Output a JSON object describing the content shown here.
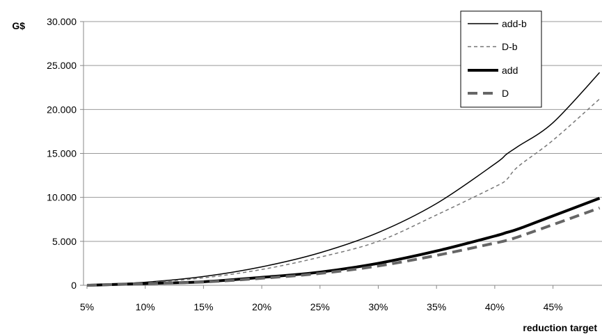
{
  "chart_data": {
    "type": "line",
    "title": "",
    "ylabel": "G$",
    "xlabel": "reduction target",
    "ylim": [
      0,
      30000
    ],
    "x_ticks": [
      "5%",
      "10%",
      "15%",
      "20%",
      "25%",
      "30%",
      "35%",
      "40%",
      "45%"
    ],
    "y_ticks": [
      "0",
      "5.000",
      "10.000",
      "15.000",
      "20.000",
      "25.000",
      "30.000"
    ],
    "grid": "horizontal",
    "legend_position": "top-right",
    "x": [
      5,
      10,
      15,
      20,
      25,
      30,
      35,
      40,
      41,
      42,
      45,
      49
    ],
    "series": [
      {
        "name": "add-b",
        "style": "thin-solid",
        "color": "#000000",
        "values": [
          0,
          350,
          1000,
          2100,
          3700,
          6000,
          9300,
          13800,
          14900,
          15800,
          18500,
          24200
        ]
      },
      {
        "name": "D-b",
        "style": "thin-dashed",
        "color": "#777777",
        "values": [
          0,
          300,
          850,
          1800,
          3200,
          5000,
          8000,
          11200,
          12000,
          13500,
          16500,
          21200
        ]
      },
      {
        "name": "add",
        "style": "thick-solid",
        "color": "#000000",
        "values": [
          0,
          200,
          400,
          900,
          1500,
          2500,
          3900,
          5600,
          6000,
          6400,
          7900,
          9900
        ]
      },
      {
        "name": "D",
        "style": "thick-dashed",
        "color": "#666666",
        "values": [
          0,
          180,
          370,
          800,
          1350,
          2200,
          3400,
          4800,
          5100,
          5500,
          6900,
          8800
        ]
      }
    ]
  }
}
